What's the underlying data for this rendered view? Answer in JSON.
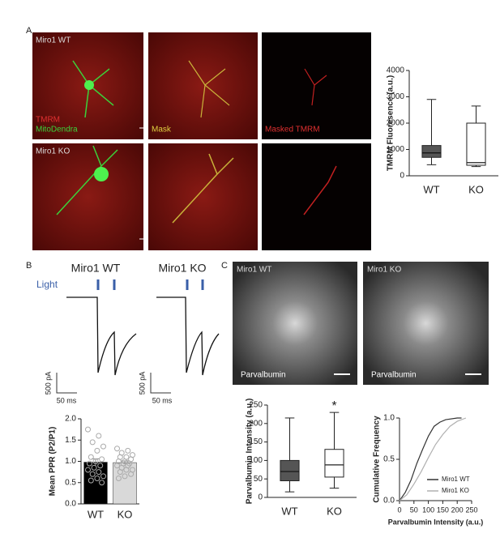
{
  "panel_a": {
    "label": "A",
    "wt_label": "Miro1 WT",
    "ko_label": "Miro1 KO",
    "channels": [
      "TMRM",
      "MitoDendra"
    ],
    "mask": "Mask",
    "masked": "Masked TMRM"
  },
  "panel_b": {
    "label": "B",
    "titles": [
      "Miro1 WT",
      "Miro1 KO"
    ],
    "stimulus": "Light",
    "scale_y": "500 pA",
    "scale_x": "50 ms"
  },
  "panel_c": {
    "label": "C",
    "titles": [
      "Miro1 WT",
      "Miro1 KO"
    ],
    "stain": "Parvalbumin"
  },
  "chart_data": [
    {
      "type": "box",
      "ylabel": "TMRM Fluoresence (a.u.)",
      "categories": [
        "WT",
        "KO"
      ],
      "boxes": [
        {
          "min": 420,
          "q1": 700,
          "median": 870,
          "q3": 1150,
          "max": 2900
        },
        {
          "min": 350,
          "q1": 400,
          "median": 500,
          "q3": 2000,
          "max": 2650
        }
      ],
      "colors": [
        "#555555",
        "#ffffff"
      ],
      "ylim": [
        0,
        4000
      ],
      "yticks": [
        0,
        1000,
        2000,
        3000,
        4000
      ]
    },
    {
      "type": "bar",
      "ylabel": "Mean PPR (P2/P1)",
      "categories": [
        "WT",
        "KO"
      ],
      "values": [
        0.98,
        0.97
      ],
      "errors": [
        0.08,
        0.04
      ],
      "points": [
        [
          1.75,
          1.6,
          1.45,
          1.35,
          1.25,
          1.1,
          1.05,
          1.0,
          0.95,
          0.9,
          0.85,
          0.8,
          0.75,
          0.7,
          0.65,
          0.6,
          0.55,
          0.5
        ],
        [
          1.3,
          1.25,
          1.2,
          1.15,
          1.1,
          1.1,
          1.05,
          1.0,
          1.0,
          0.95,
          0.95,
          0.9,
          0.9,
          0.85,
          0.8,
          0.8,
          0.75,
          0.7,
          0.65,
          0.6
        ]
      ],
      "colors": [
        "#000000",
        "#d9d9d9"
      ],
      "ylim": [
        0,
        2
      ],
      "yticks": [
        {
          "value": 0,
          "label": "0.0"
        },
        0.5,
        {
          "value": 1,
          "label": "1.0"
        },
        1.5,
        {
          "value": 2,
          "label": "2.0"
        }
      ]
    },
    {
      "type": "box",
      "ylabel": "Parvalbumin Intensity (a.u.)",
      "categories": [
        "WT",
        "KO"
      ],
      "annotation": "*",
      "boxes": [
        {
          "min": 15,
          "q1": 45,
          "median": 70,
          "q3": 100,
          "max": 215
        },
        {
          "min": 25,
          "q1": 55,
          "median": 88,
          "q3": 130,
          "max": 230
        }
      ],
      "colors": [
        "#555555",
        "#ffffff"
      ],
      "ylim": [
        0,
        250
      ],
      "yticks": [
        0,
        50,
        100,
        150,
        200,
        250
      ]
    },
    {
      "type": "line",
      "ylabel": "Cumulative Frequency",
      "xlabel": "Parvalbumin Intensity (a.u.)",
      "series": [
        {
          "name": "Miro1 WT",
          "color": "#333333",
          "x": [
            0,
            20,
            40,
            60,
            80,
            100,
            120,
            140,
            160,
            200,
            215
          ],
          "values": [
            0,
            0.1,
            0.25,
            0.45,
            0.62,
            0.78,
            0.9,
            0.95,
            0.98,
            1,
            1
          ]
        },
        {
          "name": "Miro1 KO",
          "color": "#b0b0b0",
          "x": [
            0,
            25,
            50,
            75,
            100,
            125,
            150,
            175,
            200,
            230
          ],
          "values": [
            0,
            0.07,
            0.2,
            0.35,
            0.52,
            0.68,
            0.8,
            0.9,
            0.96,
            1
          ]
        }
      ],
      "xlim": [
        0,
        250
      ],
      "xticks": [
        0,
        50,
        100,
        150,
        200,
        250
      ],
      "ylim": [
        0,
        1
      ],
      "yticks": [
        {
          "value": 0,
          "label": "0.0"
        },
        0.5,
        {
          "value": 1,
          "label": "1.0"
        }
      ],
      "legend": "lower-right"
    }
  ]
}
